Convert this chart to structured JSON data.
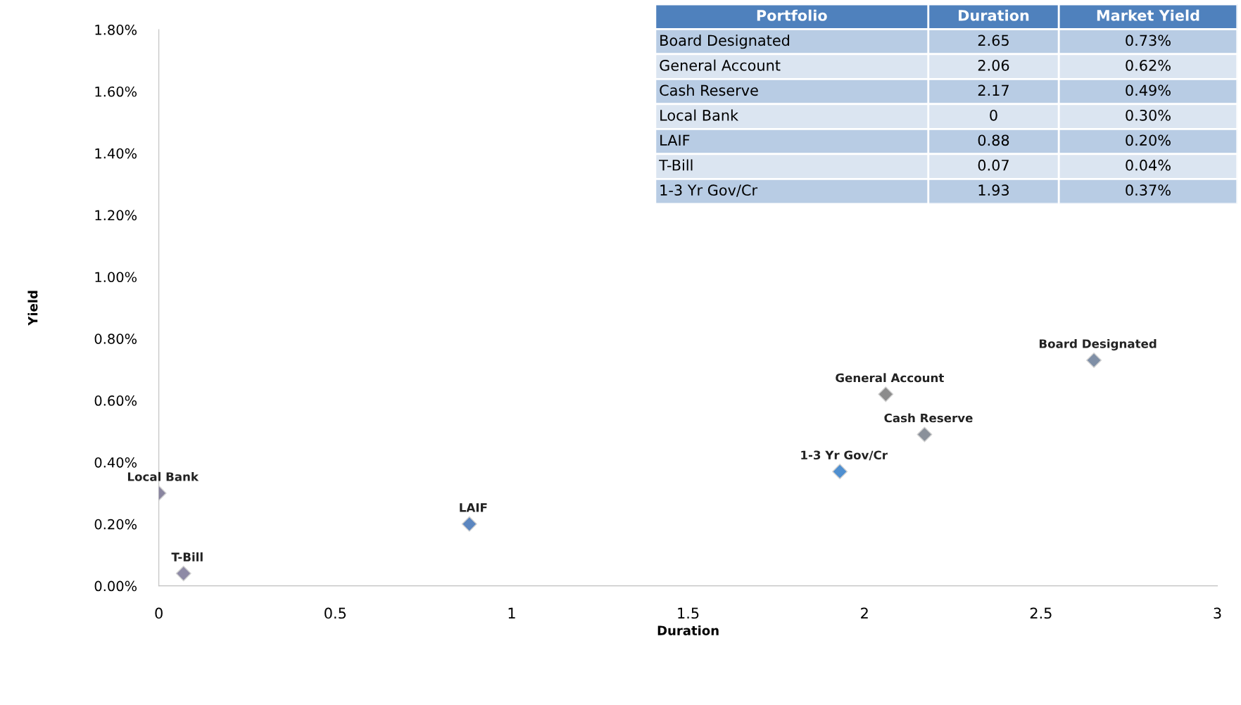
{
  "chart_data": [
    {
      "type": "scatter",
      "xlabel": "Duration",
      "ylabel": "Yield",
      "xlim": [
        0,
        3
      ],
      "xticks": [
        0,
        0.5,
        1,
        1.5,
        2,
        2.5,
        3
      ],
      "ylim": [
        0,
        1.8
      ],
      "yticks": [
        {
          "value": 0,
          "label": "0.00%"
        },
        {
          "value": 0.2,
          "label": "0.20%"
        },
        {
          "value": 0.4,
          "label": "0.40%"
        },
        {
          "value": 0.6,
          "label": "0.60%"
        },
        {
          "value": 0.8,
          "label": "0.80%"
        },
        {
          "value": 1.0,
          "label": "1.00%"
        },
        {
          "value": 1.2,
          "label": "1.20%"
        },
        {
          "value": 1.4,
          "label": "1.40%"
        },
        {
          "value": 1.6,
          "label": "1.60%"
        },
        {
          "value": 1.8,
          "label": "1.80%"
        }
      ],
      "marker": "diamond",
      "grid": false,
      "legend": false,
      "series": [
        {
          "name": "Board Designated",
          "color": "#7f8fa6",
          "x": [
            2.65
          ],
          "values": [
            0.73
          ]
        },
        {
          "name": "General Account",
          "color": "#8c8c8c",
          "x": [
            2.06
          ],
          "values": [
            0.62
          ]
        },
        {
          "name": "Cash Reserve",
          "color": "#8a909a",
          "x": [
            2.17
          ],
          "values": [
            0.49
          ]
        },
        {
          "name": "Local Bank",
          "color": "#8a86a0",
          "x": [
            0
          ],
          "values": [
            0.3
          ]
        },
        {
          "name": "LAIF",
          "color": "#5b86c0",
          "x": [
            0.88
          ],
          "values": [
            0.2
          ]
        },
        {
          "name": "T-Bill",
          "color": "#8e8aa6",
          "x": [
            0.07
          ],
          "values": [
            0.04
          ]
        },
        {
          "name": "1-3 Yr Gov/Cr",
          "color": "#4f8fd0",
          "x": [
            1.93
          ],
          "values": [
            0.37
          ]
        }
      ]
    },
    {
      "type": "other",
      "ylabel": "Portfolio",
      "categories": [
        "Board Designated",
        "General Account",
        "Cash Reserve",
        "Local Bank",
        "LAIF",
        "T-Bill",
        "1-3 Yr Gov/Cr"
      ],
      "series": [
        {
          "name": "Duration",
          "values": [
            2.65,
            2.06,
            2.17,
            0,
            0.88,
            0.07,
            1.93
          ],
          "value_labels": [
            "2.65",
            "2.06",
            "2.17",
            "0",
            "0.88",
            "0.07",
            "1.93"
          ],
          "colors": [
            "#b8cce4",
            "#dbe5f1",
            "#b8cce4",
            "#dbe5f1",
            "#b8cce4",
            "#dbe5f1",
            "#b8cce4"
          ]
        },
        {
          "name": "Market Yield",
          "values": [
            0.73,
            0.62,
            0.49,
            0.3,
            0.2,
            0.04,
            0.37
          ],
          "value_labels": [
            "0.73%",
            "0.62%",
            "0.49%",
            "0.30%",
            "0.20%",
            "0.04%",
            "0.37%"
          ],
          "colors": [
            "#b8cce4",
            "#dbe5f1",
            "#b8cce4",
            "#dbe5f1",
            "#b8cce4",
            "#dbe5f1",
            "#b8cce4"
          ]
        }
      ]
    }
  ]
}
